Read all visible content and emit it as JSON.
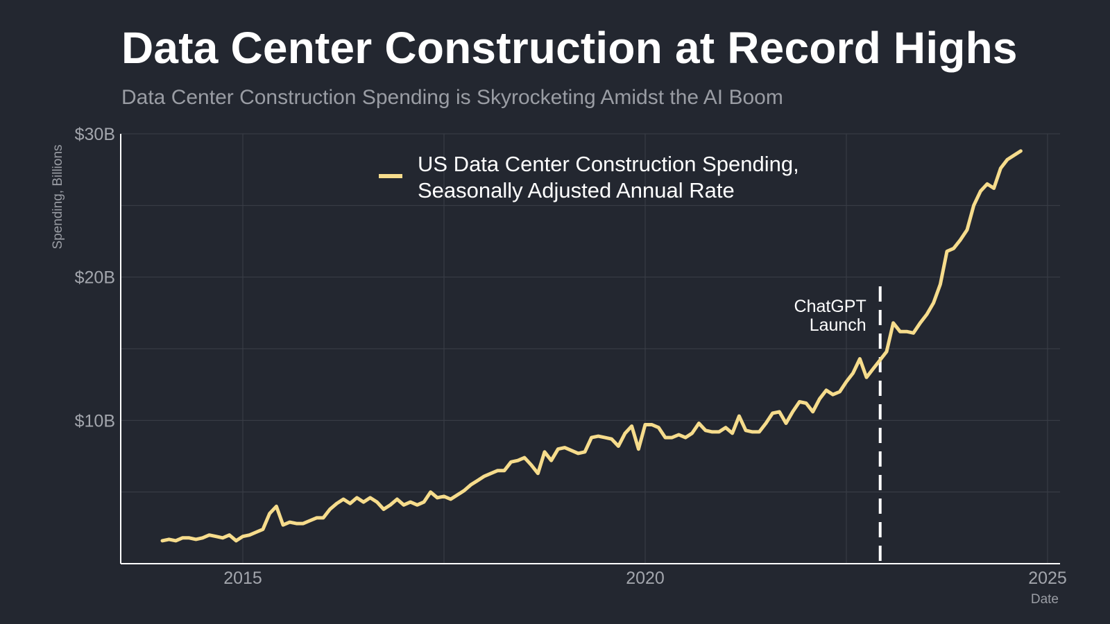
{
  "title": "Data Center Construction at Record Highs",
  "subtitle": "Data Center Construction Spending is Skyrocketing Amidst the AI Boom",
  "chart_data": {
    "type": "line",
    "title": "Data Center Construction at Record Highs",
    "subtitle": "Data Center Construction Spending is Skyrocketing Amidst the AI Boom",
    "xlabel": "Date",
    "ylabel": "Spending, Billions",
    "xlim": [
      2014.0,
      2025.0
    ],
    "ylim": [
      0,
      30
    ],
    "x_ticks": [
      2015,
      2020,
      2025
    ],
    "x_tick_labels": [
      "2015",
      "2020",
      "2025"
    ],
    "y_ticks": [
      10,
      20,
      30
    ],
    "y_tick_labels": [
      "$10B",
      "$20B",
      "$30B"
    ],
    "grid": true,
    "legend_position": "top-center",
    "line_color": "#f6dc8c",
    "annotation": {
      "x": 2022.92,
      "label_line1": "ChatGPT",
      "label_line2": "Launch",
      "color": "#ffffff"
    },
    "series": [
      {
        "name_line1": "US Data Center Construction Spending,",
        "name_line2": "Seasonally Adjusted Annual Rate",
        "x": [
          2014.0,
          2014.083,
          2014.167,
          2014.25,
          2014.333,
          2014.417,
          2014.5,
          2014.583,
          2014.667,
          2014.75,
          2014.833,
          2014.917,
          2015.0,
          2015.083,
          2015.167,
          2015.25,
          2015.333,
          2015.417,
          2015.5,
          2015.583,
          2015.667,
          2015.75,
          2015.833,
          2015.917,
          2016.0,
          2016.083,
          2016.167,
          2016.25,
          2016.333,
          2016.417,
          2016.5,
          2016.583,
          2016.667,
          2016.75,
          2016.833,
          2016.917,
          2017.0,
          2017.083,
          2017.167,
          2017.25,
          2017.333,
          2017.417,
          2017.5,
          2017.583,
          2017.667,
          2017.75,
          2017.833,
          2017.917,
          2018.0,
          2018.083,
          2018.167,
          2018.25,
          2018.333,
          2018.417,
          2018.5,
          2018.583,
          2018.667,
          2018.75,
          2018.833,
          2018.917,
          2019.0,
          2019.083,
          2019.167,
          2019.25,
          2019.333,
          2019.417,
          2019.5,
          2019.583,
          2019.667,
          2019.75,
          2019.833,
          2019.917,
          2020.0,
          2020.083,
          2020.167,
          2020.25,
          2020.333,
          2020.417,
          2020.5,
          2020.583,
          2020.667,
          2020.75,
          2020.833,
          2020.917,
          2021.0,
          2021.083,
          2021.167,
          2021.25,
          2021.333,
          2021.417,
          2021.5,
          2021.583,
          2021.667,
          2021.75,
          2021.833,
          2021.917,
          2022.0,
          2022.083,
          2022.167,
          2022.25,
          2022.333,
          2022.417,
          2022.5,
          2022.583,
          2022.667,
          2022.75,
          2022.833,
          2022.917,
          2023.0,
          2023.083,
          2023.167,
          2023.25,
          2023.333,
          2023.417,
          2023.5,
          2023.583,
          2023.667,
          2023.75,
          2023.833,
          2023.917,
          2024.0,
          2024.083,
          2024.167,
          2024.25,
          2024.333,
          2024.417,
          2024.5,
          2024.583,
          2024.667
        ],
        "values": [
          1.6,
          1.7,
          1.6,
          1.8,
          1.8,
          1.7,
          1.8,
          2.0,
          1.9,
          1.8,
          2.0,
          1.6,
          1.9,
          2.0,
          2.2,
          2.4,
          3.5,
          4.0,
          2.7,
          2.9,
          2.8,
          2.8,
          3.0,
          3.2,
          3.2,
          3.8,
          4.2,
          4.5,
          4.2,
          4.6,
          4.3,
          4.6,
          4.3,
          3.8,
          4.1,
          4.5,
          4.1,
          4.3,
          4.1,
          4.3,
          5.0,
          4.6,
          4.7,
          4.5,
          4.8,
          5.1,
          5.5,
          5.8,
          6.1,
          6.3,
          6.5,
          6.5,
          7.1,
          7.2,
          7.4,
          6.9,
          6.3,
          7.8,
          7.2,
          8.0,
          8.1,
          7.9,
          7.7,
          7.8,
          8.8,
          8.9,
          8.8,
          8.7,
          8.2,
          9.1,
          9.6,
          8.0,
          9.7,
          9.7,
          9.5,
          8.8,
          8.8,
          9.0,
          8.8,
          9.1,
          9.8,
          9.3,
          9.2,
          9.2,
          9.5,
          9.1,
          10.3,
          9.3,
          9.2,
          9.2,
          9.8,
          10.5,
          10.6,
          9.8,
          10.6,
          11.3,
          11.2,
          10.6,
          11.5,
          12.1,
          11.8,
          12.0,
          12.7,
          13.3,
          14.3,
          13.0,
          13.6,
          14.2,
          14.8,
          16.8,
          16.2,
          16.2,
          16.1,
          16.8,
          17.4,
          18.2,
          19.5,
          21.8,
          22.0,
          22.6,
          23.3,
          25.0,
          26.0,
          26.5,
          26.2,
          27.6,
          28.2,
          28.5,
          28.8
        ]
      }
    ]
  }
}
